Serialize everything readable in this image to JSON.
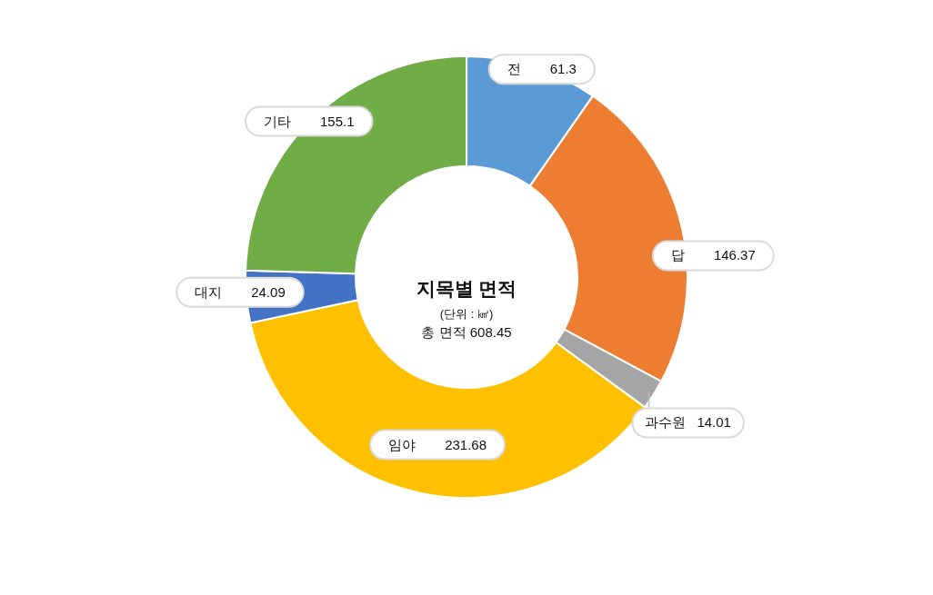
{
  "chart_data": {
    "type": "donut",
    "title": "지목별 면적",
    "subtitle": "(단위 : ㎢)",
    "annotations": [
      "총 면적 608.45"
    ],
    "categories": [
      "전",
      "답",
      "과수원",
      "임야",
      "대지",
      "기타"
    ],
    "values": [
      61.3,
      146.37,
      14.01,
      231.68,
      24.09,
      155.1
    ],
    "colors": [
      "#5b9bd5",
      "#ed7d31",
      "#a5a5a5",
      "#ffc000",
      "#4472c4",
      "#70ad47"
    ],
    "data_labels": true
  }
}
